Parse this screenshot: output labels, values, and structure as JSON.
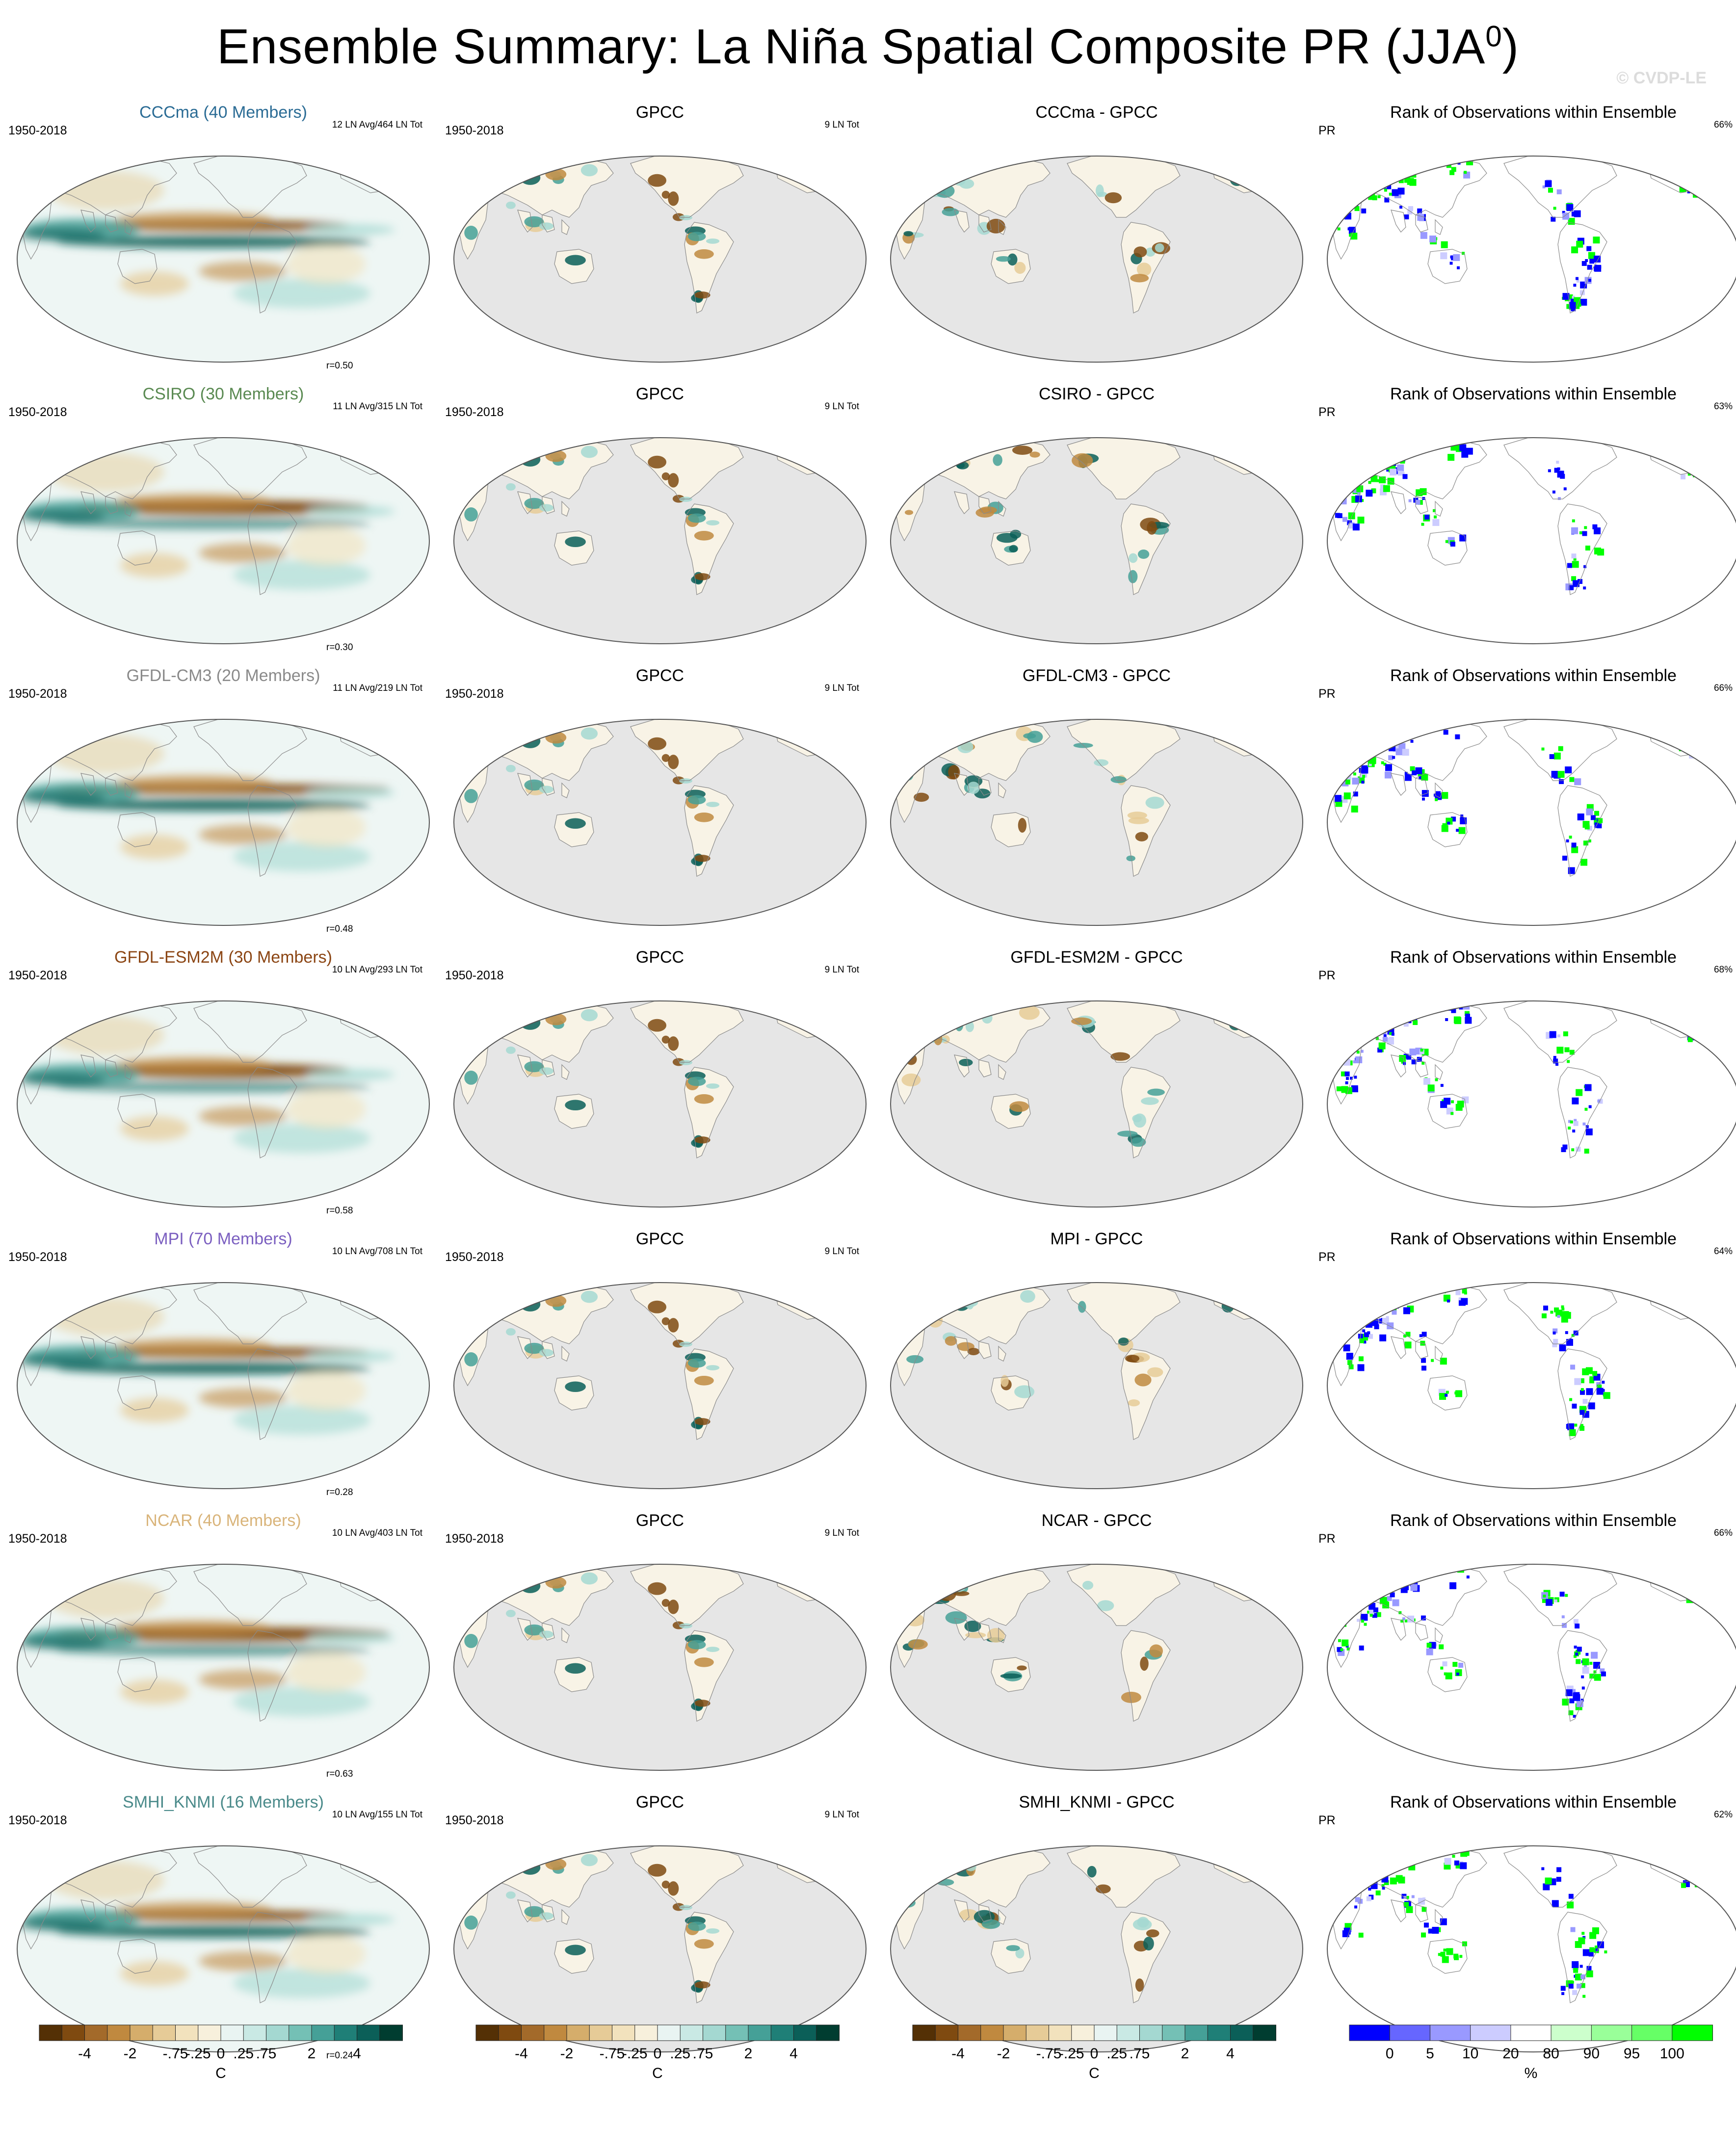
{
  "title": "Ensemble Summary: La Niña Spatial Composite PR (JJA",
  "title_superscript": "0",
  "title_close": ")",
  "watermark": "© CVDP-LE",
  "rows": [
    {
      "model": "CCCma (40 Members)",
      "model_color": "#2b6c95",
      "model_diff": "CCCma - GPCC",
      "years": "1950-2018",
      "ln_info": "12 LN Avg/464 LN Tot",
      "r": "r=0.50",
      "obs": "GPCC",
      "obs_years": "1950-2018",
      "obs_info": "9 LN Tot",
      "rank_title": "Rank of Observations within Ensemble",
      "rank_var": "PR",
      "rank_pct": "66%"
    },
    {
      "model": "CSIRO (30 Members)",
      "model_color": "#5a8a52",
      "model_diff": "CSIRO - GPCC",
      "years": "1950-2018",
      "ln_info": "11 LN Avg/315 LN Tot",
      "r": "r=0.30",
      "obs": "GPCC",
      "obs_years": "1950-2018",
      "obs_info": "9 LN Tot",
      "rank_title": "Rank of Observations within Ensemble",
      "rank_var": "PR",
      "rank_pct": "63%"
    },
    {
      "model": "GFDL-CM3 (20 Members)",
      "model_color": "#8a8a8a",
      "model_diff": "GFDL-CM3 - GPCC",
      "years": "1950-2018",
      "ln_info": "11 LN Avg/219 LN Tot",
      "r": "r=0.48",
      "obs": "GPCC",
      "obs_years": "1950-2018",
      "obs_info": "9 LN Tot",
      "rank_title": "Rank of Observations within Ensemble",
      "rank_var": "PR",
      "rank_pct": "66%"
    },
    {
      "model": "GFDL-ESM2M (30 Members)",
      "model_color": "#8b4513",
      "model_diff": "GFDL-ESM2M - GPCC",
      "years": "1950-2018",
      "ln_info": "10 LN Avg/293 LN Tot",
      "r": "r=0.58",
      "obs": "GPCC",
      "obs_years": "1950-2018",
      "obs_info": "9 LN Tot",
      "rank_title": "Rank of Observations within Ensemble",
      "rank_var": "PR",
      "rank_pct": "68%"
    },
    {
      "model": "MPI (70 Members)",
      "model_color": "#7b5fc0",
      "model_diff": "MPI - GPCC",
      "years": "1950-2018",
      "ln_info": "10 LN Avg/708 LN Tot",
      "r": "r=0.28",
      "obs": "GPCC",
      "obs_years": "1950-2018",
      "obs_info": "9 LN Tot",
      "rank_title": "Rank of Observations within Ensemble",
      "rank_var": "PR",
      "rank_pct": "64%"
    },
    {
      "model": "NCAR (40 Members)",
      "model_color": "#d9b47a",
      "model_diff": "NCAR - GPCC",
      "years": "1950-2018",
      "ln_info": "10 LN Avg/403 LN Tot",
      "r": "r=0.63",
      "obs": "GPCC",
      "obs_years": "1950-2018",
      "obs_info": "9 LN Tot",
      "rank_title": "Rank of Observations within Ensemble",
      "rank_var": "PR",
      "rank_pct": "66%"
    },
    {
      "model": "SMHI_KNMI (16 Members)",
      "model_color": "#4a8a8a",
      "model_diff": "SMHI_KNMI - GPCC",
      "years": "1950-2018",
      "ln_info": "10 LN Avg/155 LN Tot",
      "r": "r=0.24",
      "obs": "GPCC",
      "obs_years": "1950-2018",
      "obs_info": "9 LN Tot",
      "rank_title": "Rank of Observations within Ensemble",
      "rank_var": "PR",
      "rank_pct": "62%"
    }
  ],
  "colorbar": {
    "labels": [
      "-4",
      "-2",
      "-.75",
      "-.25",
      "0",
      ".25",
      ".75",
      "2",
      "4"
    ],
    "unit": "C",
    "colors": [
      "#543005",
      "#7f4a10",
      "#a36a2a",
      "#c0893f",
      "#d5ad6b",
      "#e6cb97",
      "#f2e2bd",
      "#f7f0dc",
      "#e9f4f2",
      "#c9e9e4",
      "#a4d8d1",
      "#74c0b5",
      "#45a097",
      "#1f7f77",
      "#0b5f58",
      "#003d30"
    ]
  },
  "rank_colorbar": {
    "labels": [
      "0",
      "5",
      "10",
      "20",
      "80",
      "90",
      "95",
      "100"
    ],
    "unit": "%",
    "colors": [
      "#0000ff",
      "#6666ff",
      "#9999ff",
      "#ccccff",
      "#ffffff",
      "#ccffcc",
      "#99ff99",
      "#66ff66",
      "#00ff00"
    ]
  }
}
